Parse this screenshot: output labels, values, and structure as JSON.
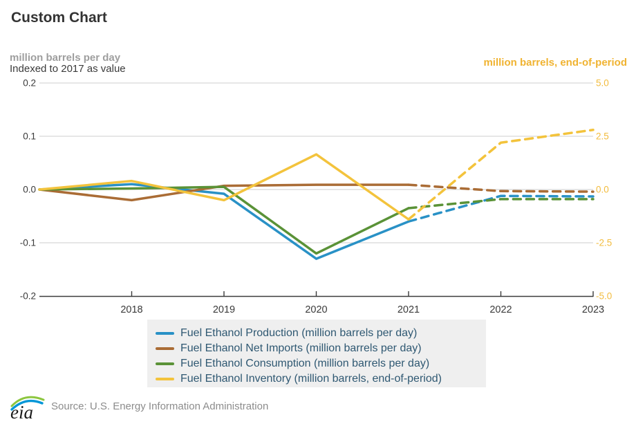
{
  "title": "Custom Chart",
  "header": {
    "left_unit_label": "million barrels per day",
    "left_sub_label": "Indexed to 2017 as value",
    "right_unit_label": "million barrels, end-of-period"
  },
  "footer": {
    "logo_text": "eia",
    "source": "Source: U.S. Energy Information Administration"
  },
  "chart_data": {
    "type": "line",
    "title": "Custom Chart",
    "x": [
      2017,
      2018,
      2019,
      2020,
      2021,
      2022,
      2023
    ],
    "x_tick_labels": [
      "2018",
      "2019",
      "2020",
      "2021",
      "2022",
      "2023"
    ],
    "projection_starts_at_x": 2021,
    "grid": true,
    "legend_position": "bottom",
    "left_axis": {
      "title": "million barrels per day",
      "subtitle": "Indexed to 2017 as value",
      "ylim": [
        -0.2,
        0.2
      ],
      "ticks": [
        {
          "label": "0.2",
          "value": 0.2
        },
        {
          "label": "0.1",
          "value": 0.1
        },
        {
          "label": "0.0",
          "value": 0.0
        },
        {
          "label": "-0.1",
          "value": -0.1
        },
        {
          "label": "-0.2",
          "value": -0.2
        }
      ],
      "label_color": "#3a3a3a"
    },
    "right_axis": {
      "title": "million barrels, end-of-period",
      "ylim": [
        -5.0,
        5.0
      ],
      "ticks": [
        {
          "label": "5.0",
          "value": 5.0
        },
        {
          "label": "2.5",
          "value": 2.5
        },
        {
          "label": "0.0",
          "value": 0.0
        },
        {
          "label": "-2.5",
          "value": -2.5
        },
        {
          "label": "-5.0",
          "value": -5.0
        }
      ],
      "label_color": "#F2BC3E"
    },
    "series": [
      {
        "key": "production",
        "name": "Fuel Ethanol Production (million barrels per day)",
        "axis": "left",
        "color": "#2991C6",
        "values": [
          0,
          0.01,
          -0.008,
          -0.13,
          -0.06,
          -0.012,
          -0.013
        ]
      },
      {
        "key": "net-imports",
        "name": "Fuel Ethanol Net Imports (million barrels per day)",
        "axis": "left",
        "color": "#AA6C35",
        "values": [
          0,
          -0.02,
          0.007,
          0.009,
          0.009,
          -0.003,
          -0.004
        ]
      },
      {
        "key": "consumption",
        "name": "Fuel Ethanol Consumption (million barrels per day)",
        "axis": "left",
        "color": "#5A9237",
        "values": [
          0,
          0.002,
          0.005,
          -0.12,
          -0.035,
          -0.018,
          -0.018
        ]
      },
      {
        "key": "inventory",
        "name": "Fuel Ethanol Inventory (million barrels, end-of-period)",
        "axis": "right",
        "color": "#F3C33C",
        "values": [
          0,
          0.4,
          -0.5,
          1.65,
          -1.4,
          2.2,
          2.8
        ]
      }
    ],
    "style": {
      "gridline_color": "#CDCDCD",
      "axis_line_color": "#3a3a3a"
    }
  }
}
